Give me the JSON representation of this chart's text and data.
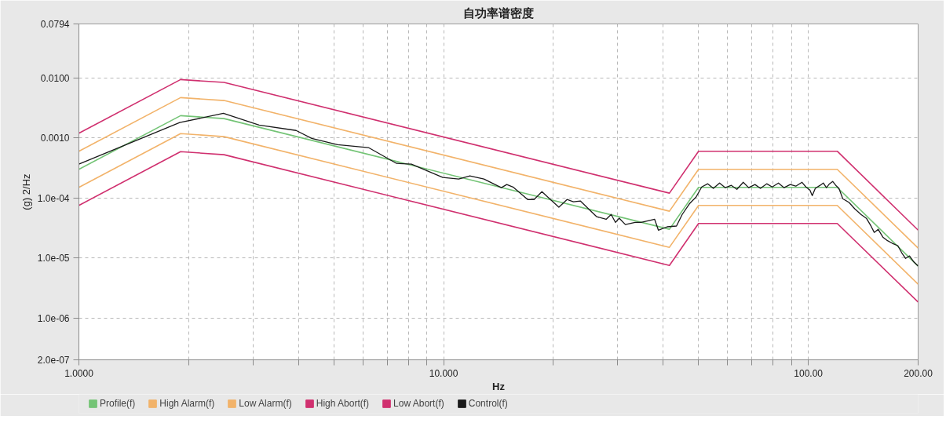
{
  "chart_data": {
    "type": "line",
    "title": "自功率谱密度",
    "xlabel": "Hz",
    "ylabel": "(g) 2/Hz",
    "log": "xy",
    "grid": true,
    "legend": "bottom",
    "xlim": [
      1,
      200
    ],
    "ylim": [
      2e-07,
      0.0794
    ],
    "xticks": [
      {
        "value": 1,
        "label": "1.0000"
      },
      {
        "value": 2,
        "label": null
      },
      {
        "value": 3,
        "label": null
      },
      {
        "value": 4,
        "label": null
      },
      {
        "value": 5,
        "label": null
      },
      {
        "value": 6,
        "label": null
      },
      {
        "value": 7,
        "label": null
      },
      {
        "value": 8,
        "label": null
      },
      {
        "value": 9,
        "label": null
      },
      {
        "value": 10,
        "label": "10.000"
      },
      {
        "value": 20,
        "label": null
      },
      {
        "value": 30,
        "label": null
      },
      {
        "value": 40,
        "label": null
      },
      {
        "value": 50,
        "label": null
      },
      {
        "value": 60,
        "label": null
      },
      {
        "value": 70,
        "label": null
      },
      {
        "value": 80,
        "label": null
      },
      {
        "value": 90,
        "label": null
      },
      {
        "value": 100,
        "label": "100.00"
      },
      {
        "value": 200,
        "label": "200.00"
      }
    ],
    "yticks": [
      {
        "value": 0.0794,
        "label": "0.0794"
      },
      {
        "value": 0.01,
        "label": "0.0100"
      },
      {
        "value": 0.001,
        "label": "0.0010"
      },
      {
        "value": 0.0001,
        "label": "1.0e-04"
      },
      {
        "value": 1e-05,
        "label": "1.0e-05"
      },
      {
        "value": 1e-06,
        "label": "1.0e-06"
      },
      {
        "value": 2e-07,
        "label": "2.0e-07"
      }
    ],
    "series": [
      {
        "name": "Profile(f)",
        "color": "#74c476",
        "x": [
          1,
          1.9,
          2.5,
          41.6,
          50,
          120,
          200
        ],
        "values": [
          0.0003,
          0.00235,
          0.0021,
          3e-05,
          0.00015,
          0.00015,
          7.3e-06
        ]
      },
      {
        "name": "High Alarm(f)",
        "color": "#f2b36a",
        "x": [
          1,
          1.9,
          2.5,
          41.6,
          50,
          120,
          200
        ],
        "values": [
          0.0006,
          0.0047,
          0.0042,
          6e-05,
          0.0003,
          0.0003,
          1.46e-05
        ]
      },
      {
        "name": "Low Alarm(f)",
        "color": "#f2b36a",
        "x": [
          1,
          1.9,
          2.5,
          41.6,
          50,
          120,
          200
        ],
        "values": [
          0.00015,
          0.00118,
          0.00105,
          1.5e-05,
          7.5e-05,
          7.5e-05,
          3.65e-06
        ]
      },
      {
        "name": "High Abort(f)",
        "color": "#d0306f",
        "x": [
          1,
          1.9,
          2.5,
          41.6,
          50,
          120,
          200
        ],
        "values": [
          0.0012,
          0.0094,
          0.0084,
          0.00012,
          0.0006,
          0.0006,
          2.9e-05
        ]
      },
      {
        "name": "Low Abort(f)",
        "color": "#d0306f",
        "x": [
          1,
          1.9,
          2.5,
          41.6,
          50,
          120,
          200
        ],
        "values": [
          7.5e-05,
          0.00059,
          0.000525,
          7.5e-06,
          3.75e-05,
          3.75e-05,
          1.83e-06
        ]
      },
      {
        "name": "Control(f)",
        "color": "#1a1a1a",
        "x": [
          1,
          1.89,
          2.49,
          3.12,
          3.94,
          4.35,
          5.12,
          6.22,
          7.43,
          8.16,
          9.95,
          11.0,
          11.8,
          12.9,
          14.4,
          14.9,
          15.5,
          17.0,
          17.7,
          18.6,
          20.7,
          21.8,
          22.7,
          23.7,
          25.2,
          26.3,
          27.9,
          28.8,
          29.6,
          30.3,
          31.5,
          33.5,
          34.8,
          37.9,
          38.8,
          41.0,
          43.5,
          45.1,
          47.3,
          49.2,
          51.0,
          53.0,
          54.9,
          57.1,
          59.2,
          61.5,
          63.7,
          66.3,
          68.6,
          71.4,
          73.9,
          76.9,
          79.6,
          82.8,
          85.8,
          89.2,
          92.4,
          96.1,
          98.5,
          101.0,
          102.5,
          104.5,
          107.7,
          109.9,
          112.1,
          114.3,
          116.6,
          118.9,
          121.3,
          124.3,
          129.3,
          134.0,
          139.4,
          144.3,
          148.6,
          151.6,
          155.4,
          160.1,
          164.1,
          169.9,
          175.9,
          180.3,
          184.8,
          189.4,
          194.2,
          200
        ],
        "values": [
          0.000365,
          0.0018,
          0.00257,
          0.00164,
          0.00133,
          0.00098,
          0.00077,
          0.00069,
          0.000376,
          0.000365,
          0.000219,
          0.000206,
          0.000232,
          0.000206,
          0.000148,
          0.000167,
          0.000152,
          9.4e-05,
          9.4e-05,
          0.000127,
          7e-05,
          9.4e-05,
          8.6e-05,
          8.9e-05,
          6.2e-05,
          4.85e-05,
          4.4e-05,
          5.3e-05,
          3.9e-05,
          4.6e-05,
          3.6e-05,
          3.9e-05,
          3.9e-05,
          4.4e-05,
          2.9e-05,
          3.3e-05,
          3.4e-05,
          5.3e-05,
          8.1e-05,
          0.000103,
          0.000152,
          0.000172,
          0.000144,
          0.000177,
          0.000148,
          0.000162,
          0.000139,
          0.000182,
          0.000148,
          0.000167,
          0.000144,
          0.000172,
          0.000152,
          0.000177,
          0.000148,
          0.000167,
          0.000157,
          0.000182,
          0.000152,
          0.000135,
          0.000109,
          0.000144,
          0.000162,
          0.000177,
          0.000148,
          0.000172,
          0.000188,
          0.000162,
          0.000144,
          9.7e-05,
          8.4e-05,
          6.6e-05,
          5.3e-05,
          4.57e-05,
          3.38e-05,
          2.66e-05,
          3e-05,
          2.22e-05,
          1.97e-05,
          1.75e-05,
          1.6e-05,
          1.22e-05,
          9.8e-06,
          1.08e-05,
          8.7e-06,
          7.3e-06
        ]
      }
    ]
  }
}
